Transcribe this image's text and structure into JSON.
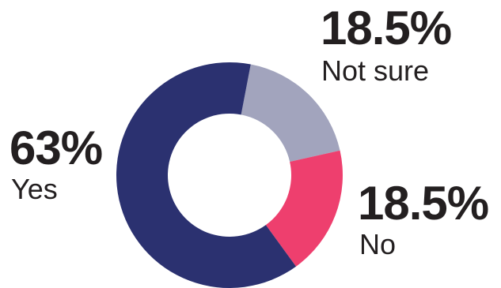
{
  "chart_data": {
    "type": "pie",
    "title": "",
    "categories": [
      "Yes",
      "No",
      "Not sure"
    ],
    "values": [
      63,
      18.5,
      18.5
    ],
    "value_labels": [
      "63%",
      "18.5%",
      "18.5%"
    ],
    "colors": [
      "#2b3170",
      "#ee3f6e",
      "#a2a4bd"
    ],
    "donut": true
  }
}
